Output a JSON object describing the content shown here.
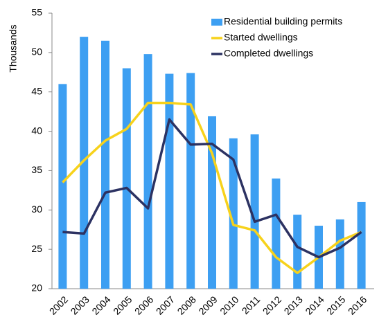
{
  "chart_data": {
    "type": "bar",
    "y_label": "Thousands",
    "categories": [
      "2002",
      "2003",
      "2004",
      "2005",
      "2006",
      "2007",
      "2008",
      "2009",
      "2010",
      "2011",
      "2012",
      "2013",
      "2014",
      "2015",
      "2016"
    ],
    "series": [
      {
        "name": "Residential building permits",
        "type": "bar",
        "color": "#3d9ff2",
        "values": [
          46,
          52,
          51.5,
          48,
          49.8,
          47.3,
          47.4,
          41.9,
          39.1,
          39.6,
          34,
          29.4,
          28,
          28.8,
          31
        ]
      },
      {
        "name": "Started dwellings",
        "type": "line",
        "color": "#f7d21b",
        "values": [
          33.5,
          36.3,
          38.8,
          40.3,
          43.6,
          43.6,
          43.4,
          37.2,
          28.1,
          27.4,
          24,
          22,
          24,
          26.1,
          27.2
        ]
      },
      {
        "name": "Completed dwellings",
        "type": "line",
        "color": "#2c3262",
        "values": [
          27.2,
          27,
          32.2,
          32.8,
          30.2,
          41.5,
          38.3,
          38.4,
          36.4,
          28.5,
          29.4,
          25.3,
          24,
          25.2,
          27.2
        ]
      }
    ],
    "ylim": [
      20,
      55
    ],
    "yticks": [
      20,
      25,
      30,
      35,
      40,
      45,
      50,
      55
    ],
    "grid": false,
    "legend": "top-right"
  }
}
